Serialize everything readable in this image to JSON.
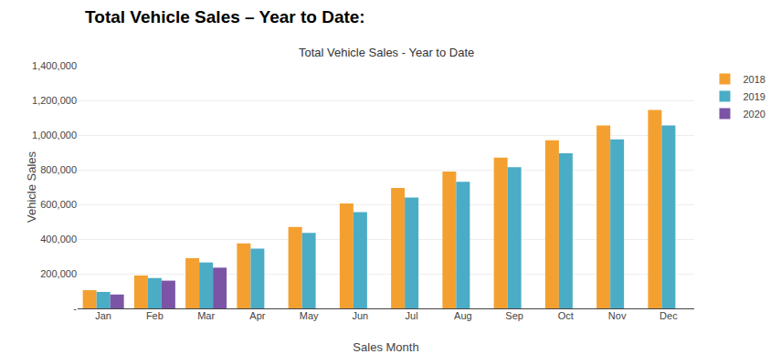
{
  "chart_data": {
    "type": "bar",
    "title": "Total Vehicle Sales – Year to Date:",
    "subtitle": "Total Vehicle Sales - Year to Date",
    "x_label": "Sales Month",
    "y_label": "Vehicle Sales",
    "categories": [
      "Jan",
      "Feb",
      "Mar",
      "Apr",
      "May",
      "Jun",
      "Jul",
      "Aug",
      "Sep",
      "Oct",
      "Nov",
      "Dec"
    ],
    "series": [
      {
        "name": "2018",
        "color": "#F4A030",
        "values": [
          105000,
          190000,
          290000,
          375000,
          470000,
          605000,
          695000,
          790000,
          870000,
          970000,
          1055000,
          1145000
        ]
      },
      {
        "name": "2019",
        "color": "#4BACC6",
        "values": [
          95000,
          175000,
          265000,
          345000,
          435000,
          555000,
          640000,
          730000,
          815000,
          895000,
          975000,
          1055000
        ]
      },
      {
        "name": "2020",
        "color": "#7B54A6",
        "values": [
          80000,
          160000,
          235000,
          0,
          0,
          0,
          0,
          0,
          0,
          0,
          0,
          0
        ]
      }
    ],
    "ylim": [
      0,
      1400000
    ],
    "yticks": [
      {
        "value": 0,
        "label": "-"
      },
      {
        "value": 200000,
        "label": "200,000"
      },
      {
        "value": 400000,
        "label": "400,000"
      },
      {
        "value": 600000,
        "label": "600,000"
      },
      {
        "value": 800000,
        "label": "800,000"
      },
      {
        "value": 1000000,
        "label": "1,000,000"
      },
      {
        "value": 1200000,
        "label": "1,200,000"
      },
      {
        "value": 1400000,
        "label": "1,400,000"
      }
    ],
    "grid": true,
    "legend": "upper right"
  }
}
